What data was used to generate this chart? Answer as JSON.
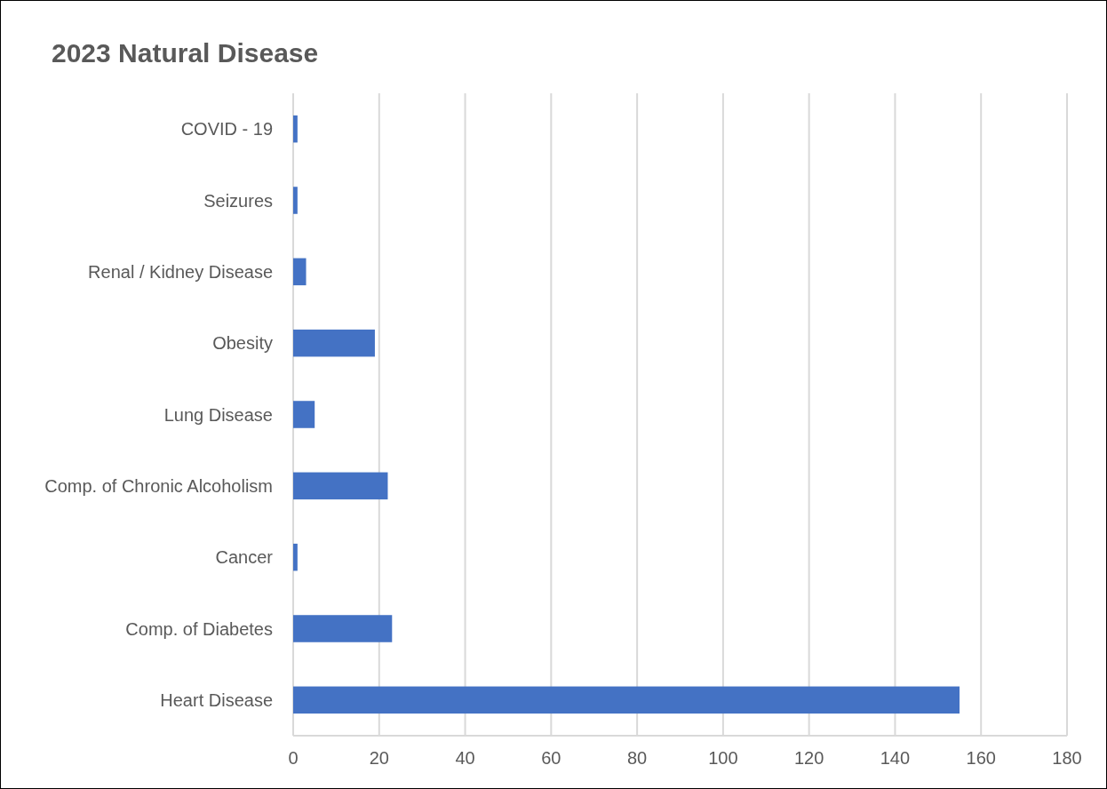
{
  "chart_data": {
    "type": "bar",
    "title": "2023 Natural Disease",
    "orientation": "horizontal",
    "categories": [
      "COVID - 19",
      "Seizures",
      "Renal / Kidney Disease",
      "Obesity",
      "Lung Disease",
      "Comp. of Chronic Alcoholism",
      "Cancer",
      "Comp. of Diabetes",
      "Heart Disease"
    ],
    "values": [
      1,
      1,
      3,
      19,
      5,
      22,
      1,
      23,
      155
    ],
    "color": "#4472c4",
    "xlim": [
      0,
      180
    ],
    "xticks": [
      0,
      20,
      40,
      60,
      80,
      100,
      120,
      140,
      160,
      180
    ],
    "grid": "x"
  }
}
